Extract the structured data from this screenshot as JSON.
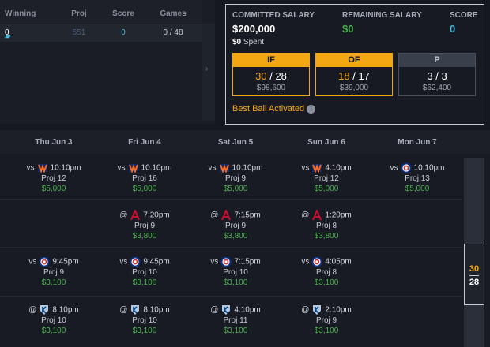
{
  "standings": {
    "headers": [
      "Winning",
      "Proj",
      "Score",
      "Games"
    ],
    "row": {
      "winning": "0",
      "proj": "551",
      "score": "0",
      "games": "0 / 48"
    },
    "arrow": "›"
  },
  "salary": {
    "committed_label": "COMMITTED SALARY",
    "committed_value": "$200,000",
    "remaining_label": "REMAINING SALARY",
    "remaining_value": "$0",
    "score_label": "SCORE",
    "score_value": "0",
    "spent_amount": "$0",
    "spent_text": "Spent",
    "positions": [
      {
        "label": "IF",
        "current": "30",
        "sep": "/",
        "max": "28",
        "salary": "$98,600"
      },
      {
        "label": "OF",
        "current": "18",
        "sep": "/",
        "max": "17",
        "salary": "$39,000"
      },
      {
        "label": "P",
        "current": "3",
        "sep": "/",
        "max": "3",
        "salary": "$62,400"
      }
    ],
    "best_ball": "Best Ball Activated"
  },
  "schedule": {
    "days": [
      "Thu Jun 3",
      "Fri Jun 4",
      "Sat Jun 5",
      "Sun Jun 6",
      "Mon Jun 7"
    ],
    "rows": [
      [
        {
          "prefix": "vs",
          "team": "mets",
          "time": "10:10pm",
          "proj": "Proj 12",
          "sal": "$5,000"
        },
        {
          "prefix": "vs",
          "team": "mets",
          "time": "10:10pm",
          "proj": "Proj 16",
          "sal": "$5,000"
        },
        {
          "prefix": "vs",
          "team": "mets",
          "time": "10:10pm",
          "proj": "Proj 9",
          "sal": "$5,000"
        },
        {
          "prefix": "vs",
          "team": "mets",
          "time": "4:10pm",
          "proj": "Proj 12",
          "sal": "$5,000"
        },
        {
          "prefix": "vs",
          "team": "cubs",
          "time": "10:10pm",
          "proj": "Proj 13",
          "sal": "$5,000"
        }
      ],
      [
        null,
        {
          "prefix": "@",
          "team": "braves",
          "time": "7:20pm",
          "proj": "Proj 9",
          "sal": "$3,800"
        },
        {
          "prefix": "@",
          "team": "braves",
          "time": "7:15pm",
          "proj": "Proj 9",
          "sal": "$3,800"
        },
        {
          "prefix": "@",
          "team": "braves",
          "time": "1:20pm",
          "proj": "Proj 8",
          "sal": "$3,800"
        },
        null
      ],
      [
        {
          "prefix": "vs",
          "team": "cubs",
          "time": "9:45pm",
          "proj": "Proj 9",
          "sal": "$3,100"
        },
        {
          "prefix": "vs",
          "team": "cubs",
          "time": "9:45pm",
          "proj": "Proj 10",
          "sal": "$3,100"
        },
        {
          "prefix": "vs",
          "team": "cubs",
          "time": "7:15pm",
          "proj": "Proj 10",
          "sal": "$3,100"
        },
        {
          "prefix": "vs",
          "team": "cubs",
          "time": "4:05pm",
          "proj": "Proj 8",
          "sal": "$3,100"
        },
        null
      ],
      [
        {
          "prefix": "@",
          "team": "royals",
          "time": "8:10pm",
          "proj": "Proj 10",
          "sal": "$3,100"
        },
        {
          "prefix": "@",
          "team": "royals",
          "time": "8:10pm",
          "proj": "Proj 10",
          "sal": "$3,100"
        },
        {
          "prefix": "@",
          "team": "royals",
          "time": "4:10pm",
          "proj": "Proj 11",
          "sal": "$3,100"
        },
        {
          "prefix": "@",
          "team": "royals",
          "time": "2:10pm",
          "proj": "Proj 9",
          "sal": "$3,100"
        },
        null
      ]
    ]
  },
  "slot_count": {
    "current": "30",
    "max": "28"
  },
  "colors": {
    "accent": "#f3a712",
    "positive": "#4caf50",
    "link": "#49b6d6"
  },
  "icons": {
    "mets": "mets-logo-icon",
    "cubs": "cubs-logo-icon",
    "braves": "braves-logo-icon",
    "royals": "royals-logo-icon",
    "info": "info-icon",
    "ticket": "ticket-icon"
  }
}
